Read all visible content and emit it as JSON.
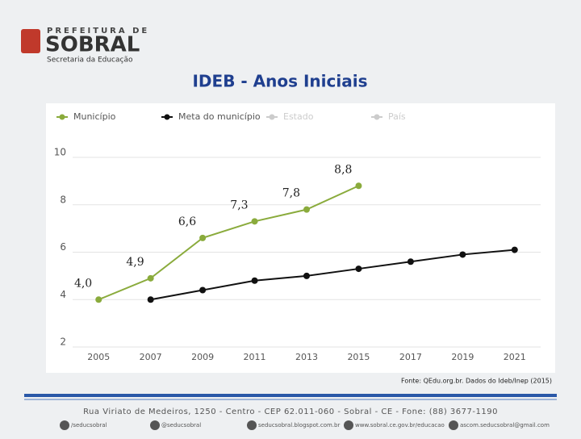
{
  "header": {
    "org_top": "PREFEITURA DE",
    "org_name": "SOBRAL",
    "org_sub": "Secretaria da Educação"
  },
  "chart_data": {
    "type": "line",
    "title": "IDEB - Anos Iniciais",
    "categories": [
      "2005",
      "2007",
      "2009",
      "2011",
      "2013",
      "2015",
      "2017",
      "2019",
      "2021"
    ],
    "series": [
      {
        "name": "Município",
        "color": "#8aab3c",
        "values": [
          4.0,
          4.9,
          6.6,
          7.3,
          7.8,
          8.8,
          null,
          null,
          null
        ],
        "value_labels": [
          "4,0",
          "4,9",
          "6,6",
          "7,3",
          "7,8",
          "8,8",
          null,
          null,
          null
        ]
      },
      {
        "name": "Meta do município",
        "color": "#111111",
        "values": [
          null,
          4.0,
          4.4,
          4.8,
          5.0,
          5.3,
          5.6,
          5.9,
          6.1
        ]
      },
      {
        "name": "Estado",
        "color": "#cccccc",
        "values": [
          null,
          null,
          null,
          null,
          null,
          null,
          null,
          null,
          null
        ]
      },
      {
        "name": "País",
        "color": "#cccccc",
        "values": [
          null,
          null,
          null,
          null,
          null,
          null,
          null,
          null,
          null
        ]
      }
    ],
    "ylim": [
      2,
      10
    ],
    "yticks": [
      2,
      4,
      6,
      8,
      10
    ],
    "grid": true,
    "source": "Fonte: QEdu.org.br. Dados do Ideb/Inep (2015)"
  },
  "footer": {
    "address": "Rua Viriato de Medeiros, 1250 - Centro - CEP 62.011-060 - Sobral - CE - Fone: (88) 3677-1190",
    "links": [
      "/seducsobral",
      "@seducsobral",
      "seducsobral.blogspot.com.br",
      "www.sobral.ce.gov.br/educacao",
      "ascom.seducsobral@gmail.com"
    ]
  }
}
